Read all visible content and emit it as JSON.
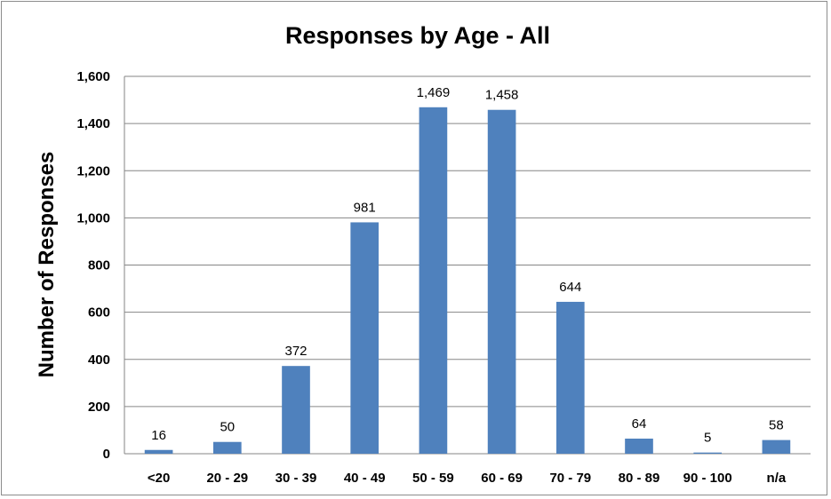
{
  "chart_data": {
    "type": "bar",
    "title": "Responses by Age - All",
    "xlabel": "",
    "ylabel": "Number of Responses",
    "categories": [
      "<20",
      "20 - 29",
      "30 - 39",
      "40 - 49",
      "50 - 59",
      "60 - 69",
      "70 - 79",
      "80 - 89",
      "90 - 100",
      "n/a"
    ],
    "values": [
      16,
      50,
      372,
      981,
      1469,
      1458,
      644,
      64,
      5,
      58
    ],
    "data_labels": [
      "16",
      "50",
      "372",
      "981",
      "1,469",
      "1,458",
      "644",
      "64",
      "5",
      "58"
    ],
    "ylim": [
      0,
      1600
    ],
    "yticks": [
      0,
      200,
      400,
      600,
      800,
      1000,
      1200,
      1400,
      1600
    ],
    "ytick_labels": [
      "0",
      "200",
      "400",
      "600",
      "800",
      "1,000",
      "1,200",
      "1,400",
      "1,600"
    ],
    "grid": true,
    "legend": "none",
    "bar_color": "#4f81bd",
    "grid_color": "#868686"
  }
}
